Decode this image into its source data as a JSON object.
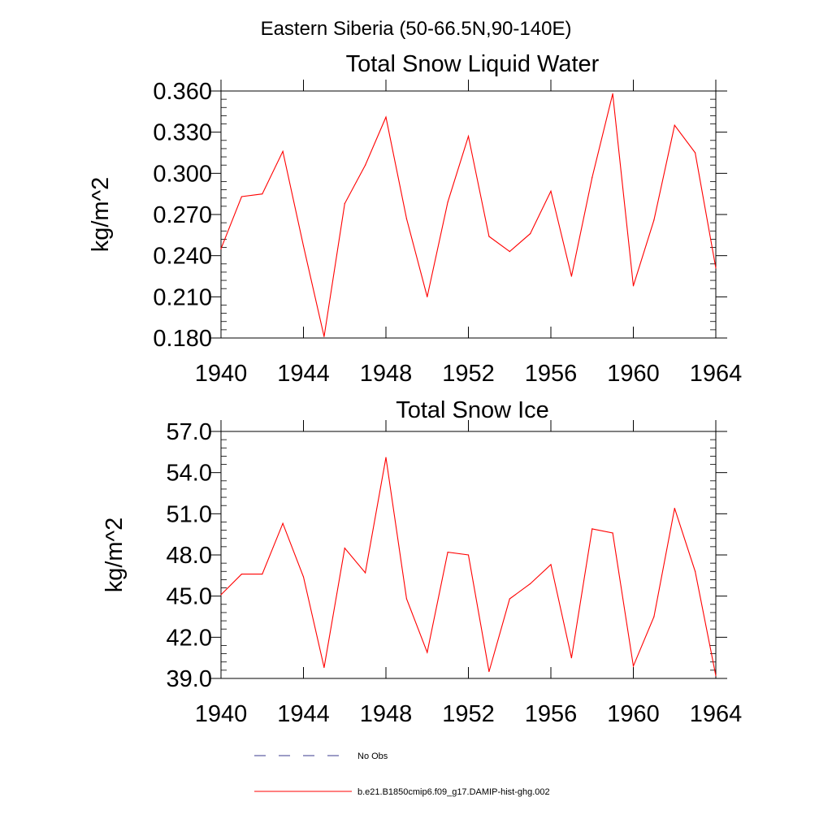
{
  "figure": {
    "suptitle": "Eastern Siberia (50-66.5N,90-140E)"
  },
  "chart_data": [
    {
      "type": "line",
      "title": "Total Snow Liquid Water",
      "xlabel": "",
      "ylabel": "kg/m^2",
      "xlim": [
        1940,
        1964
      ],
      "ylim": [
        0.18,
        0.36
      ],
      "x_ticks": [
        "1940",
        "1944",
        "1948",
        "1952",
        "1956",
        "1960",
        "1964"
      ],
      "y_ticks": [
        "0.180",
        "0.210",
        "0.240",
        "0.270",
        "0.300",
        "0.330",
        "0.360"
      ],
      "x": [
        1940,
        1941,
        1942,
        1943,
        1944,
        1945,
        1946,
        1947,
        1948,
        1949,
        1950,
        1951,
        1952,
        1953,
        1954,
        1955,
        1956,
        1957,
        1958,
        1959,
        1960,
        1961,
        1962,
        1963,
        1964
      ],
      "series": [
        {
          "name": "b.e21.B1850cmip6.f09_g17.DAMIP-hist-ghg.002",
          "color": "#ff0000",
          "values": [
            0.245,
            0.283,
            0.285,
            0.316,
            0.247,
            0.181,
            0.278,
            0.306,
            0.341,
            0.267,
            0.21,
            0.279,
            0.327,
            0.254,
            0.243,
            0.256,
            0.287,
            0.225,
            0.297,
            0.358,
            0.218,
            0.266,
            0.335,
            0.315,
            0.231
          ]
        }
      ]
    },
    {
      "type": "line",
      "title": "Total Snow Ice",
      "xlabel": "",
      "ylabel": "kg/m^2",
      "xlim": [
        1940,
        1964
      ],
      "ylim": [
        39.0,
        57.0
      ],
      "x_ticks": [
        "1940",
        "1944",
        "1948",
        "1952",
        "1956",
        "1960",
        "1964"
      ],
      "y_ticks": [
        "39.0",
        "42.0",
        "45.0",
        "48.0",
        "51.0",
        "54.0",
        "57.0"
      ],
      "x": [
        1940,
        1941,
        1942,
        1943,
        1944,
        1945,
        1946,
        1947,
        1948,
        1949,
        1950,
        1951,
        1952,
        1953,
        1954,
        1955,
        1956,
        1957,
        1958,
        1959,
        1960,
        1961,
        1962,
        1963,
        1964
      ],
      "series": [
        {
          "name": "b.e21.B1850cmip6.f09_g17.DAMIP-hist-ghg.002",
          "color": "#ff0000",
          "values": [
            45.1,
            46.6,
            46.6,
            50.3,
            46.4,
            39.8,
            48.5,
            46.7,
            55.1,
            44.8,
            40.9,
            48.2,
            48.0,
            39.5,
            44.8,
            45.9,
            47.3,
            40.5,
            49.9,
            49.6,
            39.9,
            43.5,
            51.4,
            46.8,
            39.2
          ]
        }
      ]
    }
  ],
  "legend": {
    "items": [
      {
        "label": "No Obs",
        "style": "dashed",
        "color": "#3a3a8c"
      },
      {
        "label": "b.e21.B1850cmip6.f09_g17.DAMIP-hist-ghg.002",
        "style": "solid",
        "color": "#ff0000"
      }
    ]
  }
}
